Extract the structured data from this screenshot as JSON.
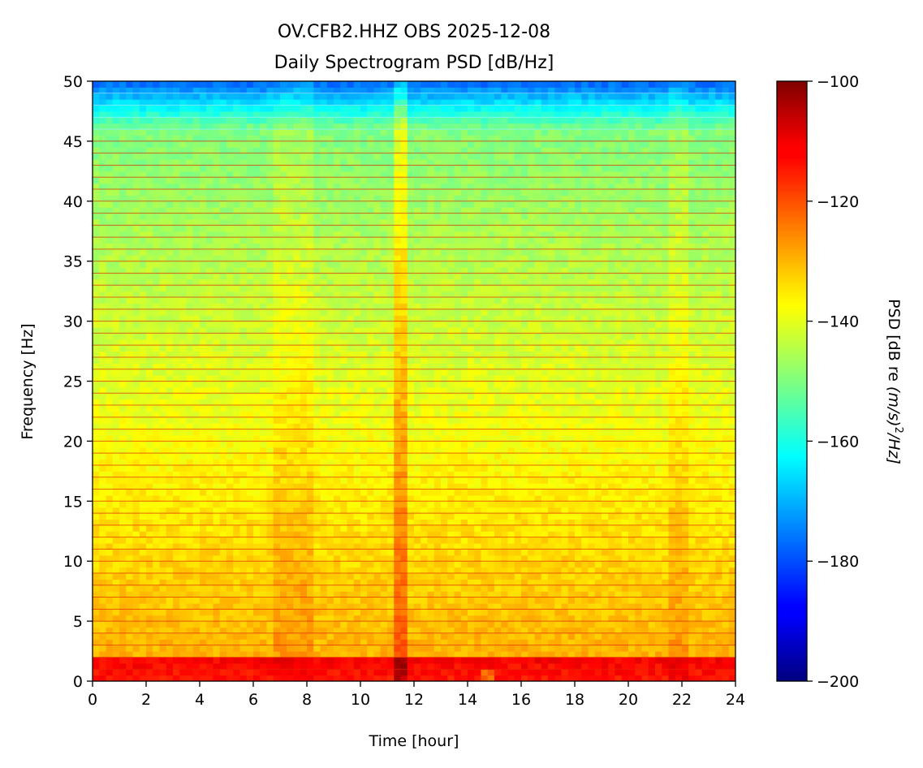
{
  "chart_data": {
    "type": "heatmap",
    "title": [
      "OV.CFB2.HHZ OBS 2025-12-08",
      "Daily Spectrogram PSD [dB/Hz]"
    ],
    "xlabel": "Time [hour]",
    "ylabel": "Frequency [Hz]",
    "xlim": [
      0,
      24
    ],
    "ylim": [
      0,
      50
    ],
    "x_ticks": [
      "0",
      "2",
      "4",
      "6",
      "8",
      "10",
      "12",
      "14",
      "16",
      "18",
      "20",
      "22",
      "24"
    ],
    "y_ticks": [
      "0",
      "5",
      "10",
      "15",
      "20",
      "25",
      "30",
      "35",
      "40",
      "45",
      "50"
    ],
    "colorbar": {
      "label_main": "PSD [dB re ",
      "label_units": "(m/s)",
      "label_exp": "2",
      "label_tail": "/Hz]",
      "range": [
        -200,
        -100
      ],
      "ticks": [
        "−100",
        "−120",
        "−140",
        "−160",
        "−180",
        "−200"
      ],
      "colormap": "jet"
    },
    "summary": {
      "background_psd_mid_freq_db": -142,
      "low_freq_band_hz": [
        0,
        2
      ],
      "low_freq_band_psd_db": -112,
      "high_freq_rolloff_start_hz": 46,
      "high_freq_psd_db": -175,
      "harmonic_lines_hz": [
        1,
        2,
        3,
        4,
        5,
        6,
        7,
        8,
        9,
        10,
        11,
        12,
        13,
        14,
        15,
        16,
        17,
        18,
        19,
        20,
        21,
        22,
        23,
        24,
        25,
        26,
        27,
        28,
        29,
        30,
        31,
        32,
        33,
        34,
        35,
        36,
        37,
        38,
        39,
        40,
        41,
        42,
        43,
        44,
        45,
        46,
        47,
        48,
        49
      ],
      "strong_event_hours": [
        11.3,
        11.8
      ],
      "moderate_energy_hours": [
        [
          6.7,
          8.2
        ],
        [
          21.4,
          22.3
        ]
      ],
      "gap_low_power_hours": [
        14.4,
        15.0
      ]
    }
  }
}
